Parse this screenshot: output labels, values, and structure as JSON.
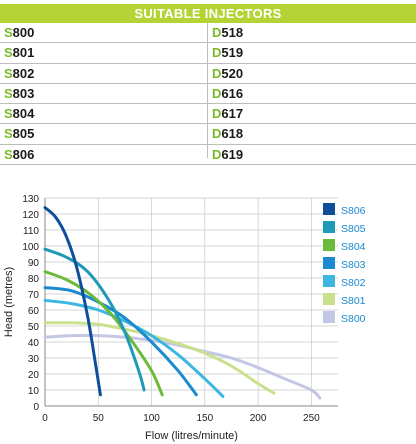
{
  "table": {
    "header": "SUITABLE INJECTORS",
    "rows": [
      {
        "left_prefix": "S",
        "left_rest": "800",
        "right_prefix": "D",
        "right_rest": "518"
      },
      {
        "left_prefix": "S",
        "left_rest": "801",
        "right_prefix": "D",
        "right_rest": "519"
      },
      {
        "left_prefix": "S",
        "left_rest": "802",
        "right_prefix": "D",
        "right_rest": "520"
      },
      {
        "left_prefix": "S",
        "left_rest": "803",
        "right_prefix": "D",
        "right_rest": "616"
      },
      {
        "left_prefix": "S",
        "left_rest": "804",
        "right_prefix": "D",
        "right_rest": "617"
      },
      {
        "left_prefix": "S",
        "left_rest": "805",
        "right_prefix": "D",
        "right_rest": "618"
      },
      {
        "left_prefix": "S",
        "left_rest": "806",
        "right_prefix": "D",
        "right_rest": "619"
      }
    ],
    "colors": {
      "header_bg": "#b5d334",
      "prefix": "#7ab929",
      "text": "#1a1a1a"
    }
  },
  "chart_data": {
    "type": "line",
    "xlabel": "Flow (litres/minute)",
    "ylabel": "Head (metres)",
    "xlim": [
      0,
      275
    ],
    "ylim": [
      0,
      130
    ],
    "xticks": [
      0,
      50,
      100,
      150,
      200,
      250
    ],
    "yticks": [
      0,
      10,
      20,
      30,
      40,
      50,
      60,
      70,
      80,
      90,
      100,
      110,
      120,
      130
    ],
    "grid": true,
    "legend_position": "right",
    "series": [
      {
        "name": "S806",
        "color": "#0f4e9b",
        "points": [
          [
            0,
            124
          ],
          [
            10,
            118
          ],
          [
            20,
            106
          ],
          [
            30,
            86
          ],
          [
            40,
            56
          ],
          [
            47,
            28
          ],
          [
            52,
            7
          ]
        ]
      },
      {
        "name": "S805",
        "color": "#1e99b8",
        "points": [
          [
            0,
            98
          ],
          [
            20,
            93
          ],
          [
            40,
            84
          ],
          [
            60,
            66
          ],
          [
            75,
            46
          ],
          [
            88,
            22
          ],
          [
            93,
            10
          ]
        ]
      },
      {
        "name": "S804",
        "color": "#6bbb3a",
        "points": [
          [
            0,
            84
          ],
          [
            20,
            79
          ],
          [
            40,
            71
          ],
          [
            60,
            59
          ],
          [
            80,
            42
          ],
          [
            100,
            22
          ],
          [
            110,
            7
          ]
        ]
      },
      {
        "name": "S803",
        "color": "#1b8ad0",
        "points": [
          [
            0,
            74
          ],
          [
            25,
            72
          ],
          [
            50,
            65
          ],
          [
            75,
            55
          ],
          [
            100,
            40
          ],
          [
            125,
            22
          ],
          [
            142,
            7
          ]
        ]
      },
      {
        "name": "S802",
        "color": "#3db7e0",
        "points": [
          [
            0,
            66
          ],
          [
            25,
            64
          ],
          [
            50,
            60
          ],
          [
            75,
            53
          ],
          [
            100,
            44
          ],
          [
            125,
            32
          ],
          [
            150,
            17
          ],
          [
            167,
            6
          ]
        ]
      },
      {
        "name": "S801",
        "color": "#c9e18c",
        "points": [
          [
            0,
            52
          ],
          [
            25,
            52
          ],
          [
            50,
            51
          ],
          [
            75,
            48
          ],
          [
            100,
            44
          ],
          [
            125,
            39
          ],
          [
            150,
            33
          ],
          [
            175,
            25
          ],
          [
            200,
            14
          ],
          [
            215,
            8
          ]
        ]
      },
      {
        "name": "S800",
        "color": "#c3c6e4",
        "points": [
          [
            0,
            43
          ],
          [
            25,
            44
          ],
          [
            50,
            44
          ],
          [
            75,
            43
          ],
          [
            100,
            41
          ],
          [
            125,
            38
          ],
          [
            150,
            34
          ],
          [
            175,
            30
          ],
          [
            200,
            24
          ],
          [
            225,
            17
          ],
          [
            250,
            10
          ],
          [
            258,
            5
          ]
        ]
      }
    ]
  }
}
